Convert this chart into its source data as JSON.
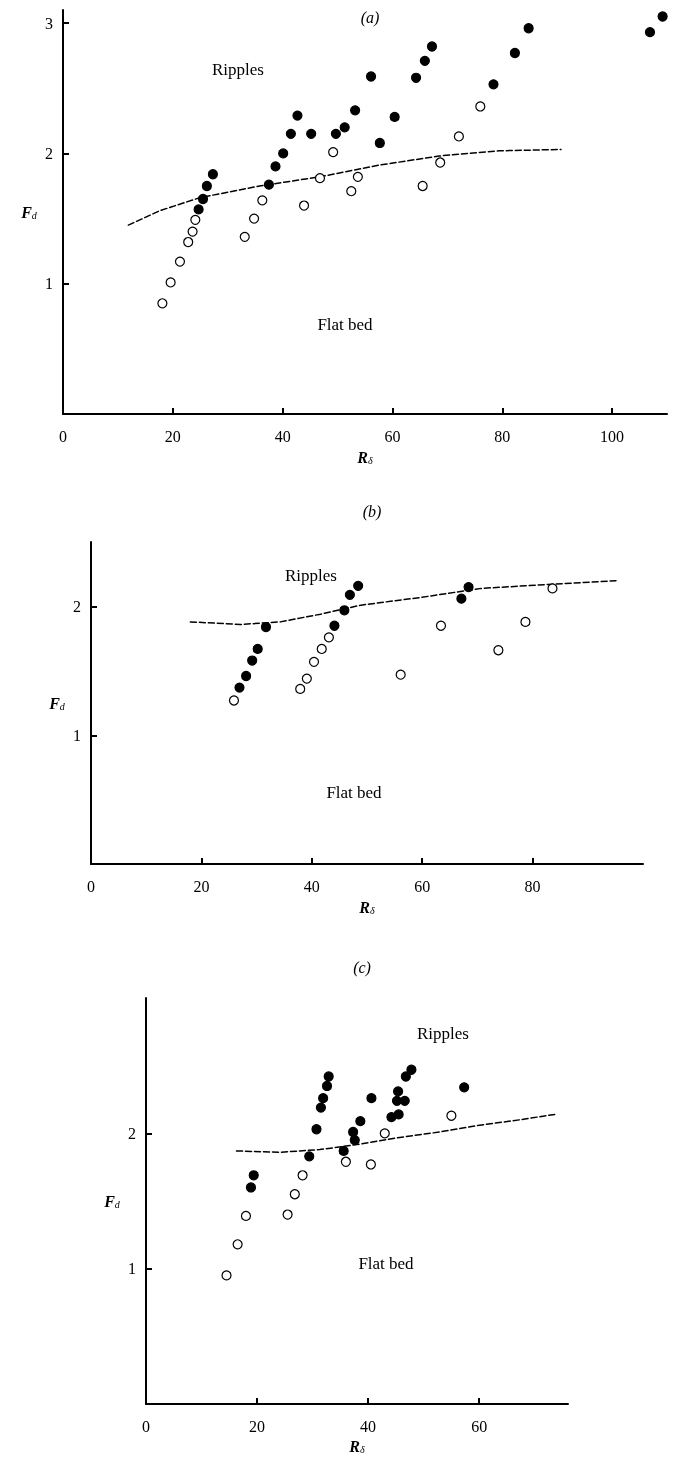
{
  "chart_data": [
    {
      "type": "scatter",
      "title": "(a)",
      "xlabel": "R$_{δ}$",
      "ylabel": "F$_{d}$",
      "xlim": [
        0,
        110
      ],
      "ylim": [
        0,
        3.1
      ],
      "xticks": [
        0,
        20,
        40,
        60,
        80,
        100
      ],
      "yticks": [
        1,
        2,
        3
      ],
      "grid": false,
      "marker": "circle",
      "annotations": [
        "Ripples",
        "Flat bed"
      ],
      "series": [
        {
          "color": "#000000",
          "x": [
            24.7,
            25.5,
            26.2,
            27.3,
            37.5,
            38.7,
            40.1,
            41.5,
            42.7,
            45.2,
            49.7,
            51.3,
            53.2,
            56.1,
            57.7,
            60.4,
            64.3,
            65.9,
            67.2,
            78.4,
            82.3,
            84.8,
            106.9,
            109.2
          ],
          "values": [
            1.57,
            1.65,
            1.75,
            1.84,
            1.76,
            1.9,
            2.0,
            2.15,
            2.29,
            2.15,
            2.15,
            2.2,
            2.33,
            2.59,
            2.08,
            2.28,
            2.58,
            2.71,
            2.82,
            2.53,
            2.77,
            2.96,
            2.93,
            3.05
          ]
        },
        {
          "color": "#ffffff",
          "x": [
            18.1,
            19.6,
            21.3,
            22.8,
            23.6,
            24.1,
            33.1,
            34.8,
            36.3,
            43.9,
            46.8,
            49.2,
            52.5,
            53.7,
            65.5,
            68.7,
            72.1,
            76.0
          ],
          "values": [
            0.85,
            1.01,
            1.17,
            1.32,
            1.4,
            1.49,
            1.36,
            1.5,
            1.64,
            1.6,
            1.81,
            2.01,
            1.71,
            1.82,
            1.75,
            1.93,
            2.13,
            2.36
          ]
        },
        {
          "type": "line",
          "color": "#000000",
          "line_style": "dashed",
          "marker": "none",
          "x": [
            11.9,
            17.6,
            24.9,
            35.8,
            46.7,
            57.6,
            68.5,
            79.4,
            90.7
          ],
          "values": [
            1.45,
            1.56,
            1.66,
            1.75,
            1.82,
            1.91,
            1.98,
            2.02,
            2.03
          ]
        }
      ]
    },
    {
      "type": "scatter",
      "title": "(b)",
      "xlabel": "R$_{δ}$",
      "ylabel": "F$_{d}$",
      "xlim": [
        0,
        100
      ],
      "ylim": [
        0,
        2.5
      ],
      "xticks": [
        0,
        20,
        40,
        60,
        80
      ],
      "yticks": [
        1,
        2
      ],
      "grid": false,
      "marker": "circle",
      "annotations": [
        "Ripples",
        "Flat bed"
      ],
      "series": [
        {
          "color": "#000000",
          "x": [
            26.9,
            28.1,
            29.2,
            30.2,
            31.7,
            44.1,
            45.9,
            46.9,
            48.4,
            67.1,
            68.4
          ],
          "values": [
            1.37,
            1.46,
            1.58,
            1.67,
            1.84,
            1.85,
            1.97,
            2.09,
            2.16,
            2.06,
            2.15
          ]
        },
        {
          "color": "#ffffff",
          "x": [
            25.9,
            37.9,
            39.1,
            40.4,
            41.8,
            43.1,
            56.1,
            63.4,
            73.8,
            78.7,
            83.6
          ],
          "values": [
            1.27,
            1.36,
            1.44,
            1.57,
            1.67,
            1.76,
            1.47,
            1.85,
            1.66,
            1.88,
            2.14
          ]
        },
        {
          "type": "line",
          "color": "#000000",
          "line_style": "dashed",
          "marker": "none",
          "x": [
            18.0,
            27.1,
            34.3,
            41.6,
            48.9,
            59.8,
            70.7,
            78.7,
            95.1
          ],
          "values": [
            1.88,
            1.86,
            1.88,
            1.94,
            2.01,
            2.07,
            2.14,
            2.16,
            2.2
          ]
        }
      ]
    },
    {
      "type": "scatter",
      "title": "(c)",
      "xlabel": "R$_{δ}$",
      "ylabel": "F$_{d}$",
      "xlim": [
        0,
        76
      ],
      "ylim": [
        0,
        3
      ],
      "xticks": [
        0,
        20,
        40,
        60
      ],
      "yticks": [
        1,
        2
      ],
      "grid": false,
      "marker": "circle",
      "annotations": [
        "Ripples",
        "Flat bed"
      ],
      "series": [
        {
          "color": "#000000",
          "x": [
            18.9,
            19.4,
            29.4,
            30.7,
            31.5,
            31.9,
            32.6,
            32.9,
            35.6,
            37.3,
            37.6,
            38.6,
            40.6,
            44.2,
            45.5,
            45.2,
            45.4,
            46.6,
            46.8,
            47.8,
            57.3
          ],
          "values": [
            1.6,
            1.69,
            1.83,
            2.03,
            2.19,
            2.26,
            2.35,
            2.42,
            1.87,
            2.01,
            1.95,
            2.09,
            2.26,
            2.12,
            2.14,
            2.24,
            2.31,
            2.24,
            2.42,
            2.47,
            2.34
          ]
        },
        {
          "color": "#ffffff",
          "x": [
            14.5,
            16.5,
            18.0,
            25.5,
            26.8,
            28.2,
            36.0,
            40.5,
            43.0,
            55.0
          ],
          "values": [
            0.95,
            1.18,
            1.39,
            1.4,
            1.55,
            1.69,
            1.79,
            1.77,
            2.0,
            2.13
          ]
        },
        {
          "type": "line",
          "color": "#000000",
          "line_style": "dashed",
          "marker": "none",
          "x": [
            16.3,
            24.1,
            31.3,
            38.5,
            45.7,
            52.9,
            60.1,
            67.3,
            73.6
          ],
          "values": [
            1.87,
            1.86,
            1.88,
            1.92,
            1.97,
            2.01,
            2.06,
            2.1,
            2.14
          ]
        }
      ]
    }
  ]
}
